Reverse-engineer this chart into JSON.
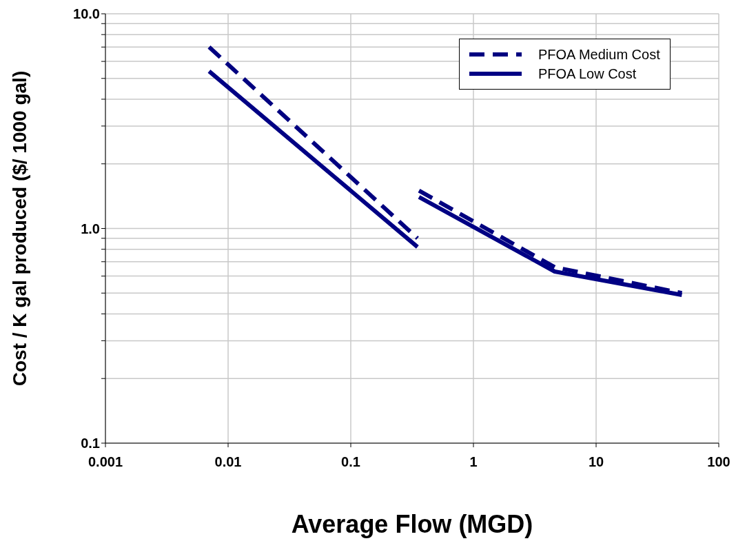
{
  "chart_data": {
    "type": "line",
    "xlabel": "Average Flow (MGD)",
    "ylabel": "Cost  / K gal produced ($/ 1000 gal)",
    "x": [
      0.007,
      0.35,
      0.355,
      0.36,
      4.6,
      50
    ],
    "series": [
      {
        "name": "PFOA Medium Cost",
        "color": "#000080",
        "line_style": "dashed",
        "values": [
          7.0,
          0.9,
          null,
          1.5,
          0.66,
          0.5
        ]
      },
      {
        "name": "PFOA Low Cost",
        "color": "#000084",
        "line_style": "solid",
        "values": [
          5.4,
          0.82,
          null,
          1.4,
          0.63,
          0.49
        ]
      }
    ],
    "log": "xy",
    "xlim": [
      0.001,
      100
    ],
    "xticks": [
      0.001,
      0.01,
      0.1,
      1,
      10,
      100
    ],
    "ylim": [
      0.1,
      10
    ],
    "yticks": [
      {
        "value": 0.1,
        "label": "0.1"
      },
      {
        "value": 0.2,
        "label": null
      },
      {
        "value": 0.3,
        "label": null
      },
      {
        "value": 0.4,
        "label": null
      },
      {
        "value": 0.5,
        "label": null
      },
      {
        "value": 0.6,
        "label": null
      },
      {
        "value": 0.7,
        "label": null
      },
      {
        "value": 0.8,
        "label": null
      },
      {
        "value": 0.9,
        "label": null
      },
      {
        "value": 1,
        "label": "1.0"
      },
      {
        "value": 2,
        "label": null
      },
      {
        "value": 3,
        "label": null
      },
      {
        "value": 4,
        "label": null
      },
      {
        "value": 5,
        "label": null
      },
      {
        "value": 6,
        "label": null
      },
      {
        "value": 7,
        "label": null
      },
      {
        "value": 8,
        "label": null
      },
      {
        "value": 9,
        "label": null
      },
      {
        "value": 10,
        "label": "10.0"
      }
    ],
    "grid": true,
    "legend": "top right",
    "marker": "none"
  }
}
